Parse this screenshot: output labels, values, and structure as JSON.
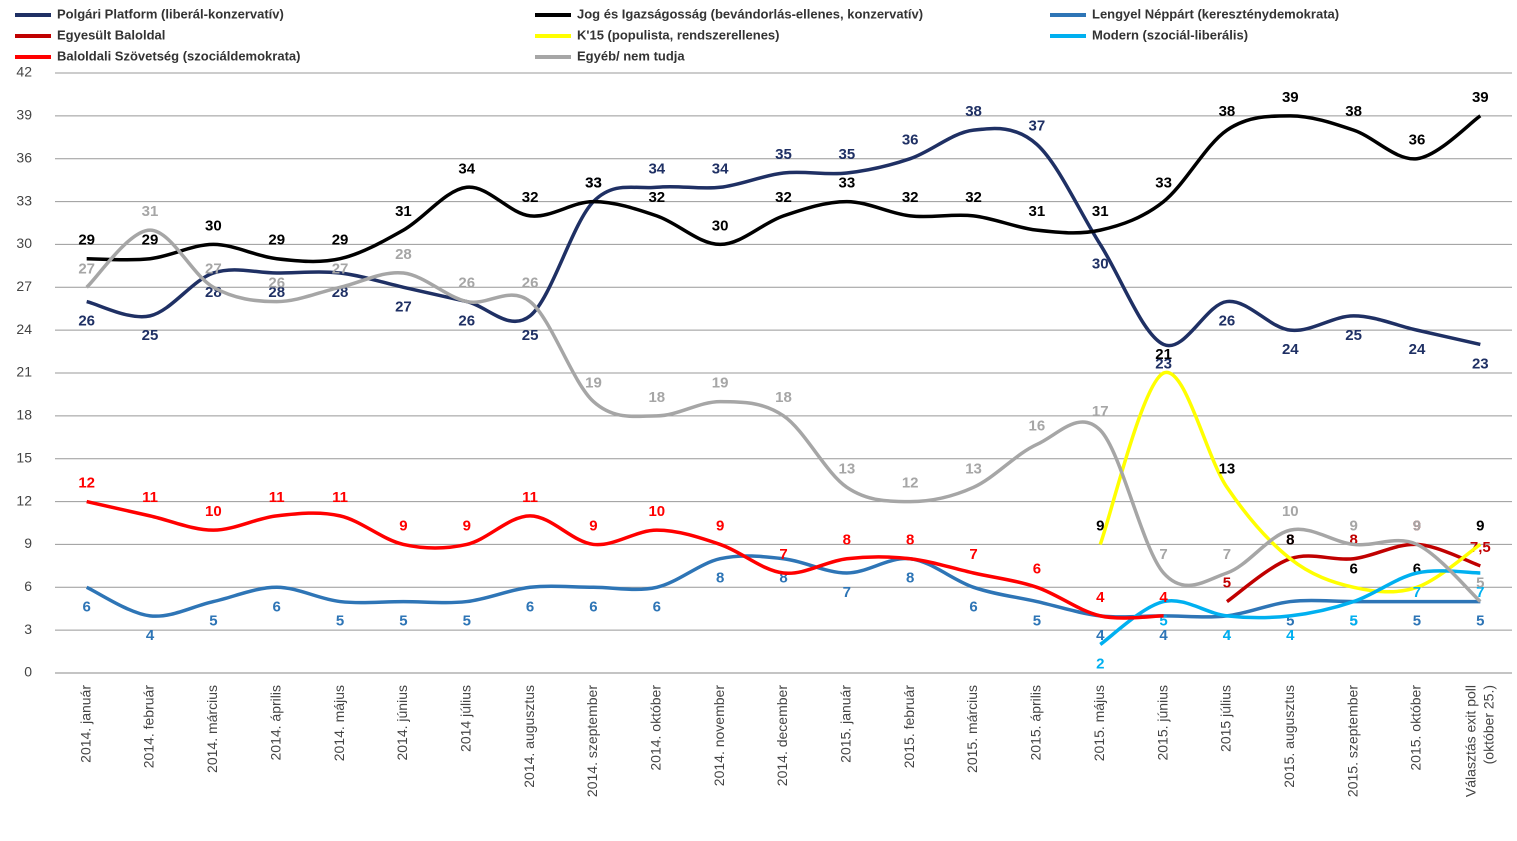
{
  "chart_data": {
    "type": "line",
    "categories": [
      "2014. január",
      "2014. február",
      "2014. március",
      "2014. április",
      "2014. május",
      "2014. június",
      "2014 július",
      "2014. augusztus",
      "2014. szeptember",
      "2014. október",
      "2014. november",
      "2014. december",
      "2015. január",
      "2015. február",
      "2015. március",
      "2015. április",
      "2015. május",
      "2015. június",
      "2015 július",
      "2015. augusztus",
      "2015. szeptember",
      "2015. október",
      "Választás exit poll\n(október 25.)"
    ],
    "series": [
      {
        "name": "Polgári Platform (liberál-konzervatív)",
        "color": "#1f3064",
        "values": [
          26,
          25,
          28,
          28,
          28,
          27,
          26,
          25,
          33,
          34,
          34,
          35,
          35,
          36,
          38,
          37,
          30,
          23,
          26,
          24,
          25,
          24,
          23
        ]
      },
      {
        "name": "Jog és Igazságosság (bevándorlás-ellenes, konzervatív)",
        "color": "#000000",
        "values": [
          29,
          29,
          30,
          29,
          29,
          31,
          34,
          32,
          33,
          32,
          30,
          32,
          33,
          32,
          32,
          31,
          31,
          33,
          38,
          39,
          38,
          36,
          39
        ]
      },
      {
        "name": "Lengyel Néppárt (kereszténydemokrata)",
        "color": "#2e75b6",
        "values": [
          6,
          4,
          5,
          6,
          5,
          5,
          5,
          6,
          6,
          6,
          8,
          8,
          7,
          8,
          6,
          5,
          4,
          4,
          4,
          5,
          5,
          5,
          5
        ]
      },
      {
        "name": "Egyesült Baloldal",
        "color": "#c00000",
        "values": [
          null,
          null,
          null,
          null,
          null,
          null,
          null,
          null,
          null,
          null,
          null,
          null,
          null,
          null,
          null,
          null,
          null,
          null,
          5,
          8,
          8,
          9,
          7.5
        ],
        "value_labels": [
          null,
          null,
          null,
          null,
          null,
          null,
          null,
          null,
          null,
          null,
          null,
          null,
          null,
          null,
          null,
          null,
          null,
          null,
          "5",
          "8",
          "8",
          "9",
          "7,5"
        ]
      },
      {
        "name": "K'15 (populista, rendszerellenes)",
        "color": "#ffff00",
        "values": [
          null,
          null,
          null,
          null,
          null,
          null,
          null,
          null,
          null,
          null,
          null,
          null,
          null,
          null,
          null,
          null,
          9,
          21,
          13,
          8,
          6,
          6,
          9
        ]
      },
      {
        "name": "Modern (szociál-liberális)",
        "color": "#00b0f0",
        "values": [
          null,
          null,
          null,
          null,
          null,
          null,
          null,
          null,
          null,
          null,
          null,
          null,
          null,
          null,
          null,
          null,
          2,
          5,
          4,
          4,
          5,
          7,
          7
        ]
      },
      {
        "name": "Baloldali Szövetség (szociáldemokrata)",
        "color": "#ff0000",
        "values": [
          12,
          11,
          10,
          11,
          11,
          9,
          9,
          11,
          9,
          10,
          9,
          7,
          8,
          8,
          7,
          6,
          4,
          4,
          null,
          null,
          null,
          null,
          null
        ]
      },
      {
        "name": "Egyéb/ nem tudja",
        "color": "#a6a6a6",
        "values": [
          27,
          31,
          27,
          26,
          27,
          28,
          26,
          26,
          19,
          18,
          19,
          18,
          13,
          12,
          13,
          16,
          17,
          7,
          7,
          10,
          9,
          9,
          5
        ]
      }
    ],
    "ylim": [
      0,
      42
    ],
    "yticks": [
      0,
      3,
      6,
      9,
      12,
      15,
      18,
      21,
      24,
      27,
      30,
      33,
      36,
      39,
      42
    ],
    "grid": true
  }
}
